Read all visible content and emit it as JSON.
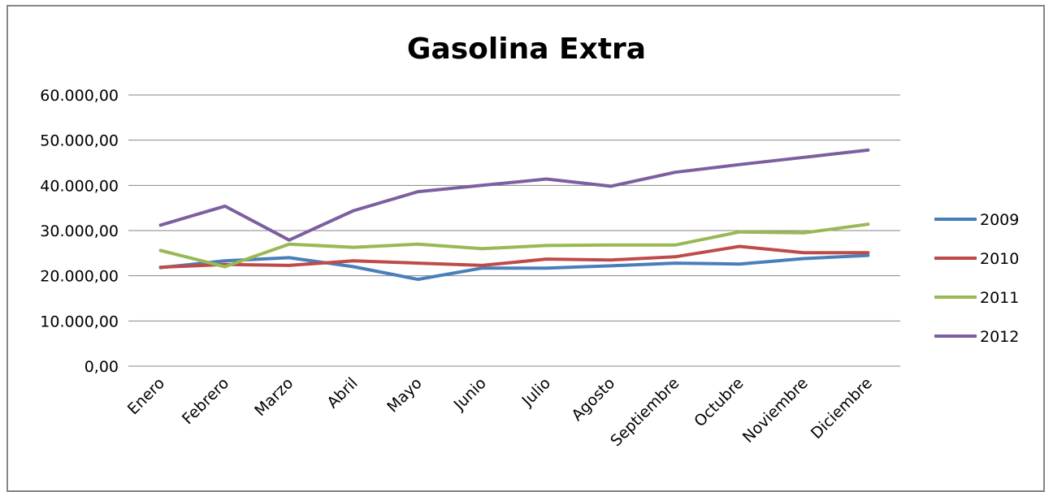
{
  "chart_data": {
    "type": "line",
    "title": "Gasolina Extra",
    "xlabel": "",
    "ylabel": "",
    "categories": [
      "Enero",
      "Febrero",
      "Marzo",
      "Abril",
      "Mayo",
      "Junio",
      "Julio",
      "Agosto",
      "Septiembre",
      "Octubre",
      "Noviembre",
      "Diciembre"
    ],
    "ylim": [
      0,
      60000
    ],
    "yticks": [
      "0,00",
      "10.000,00",
      "20.000,00",
      "30.000,00",
      "40.000,00",
      "50.000,00",
      "60.000,00"
    ],
    "grid": true,
    "legend_position": "right",
    "series": [
      {
        "name": "2009",
        "color": "#4A7EBB",
        "values": [
          21800,
          23300,
          24000,
          22000,
          19200,
          21700,
          21700,
          22200,
          22800,
          22600,
          23800,
          24500
        ]
      },
      {
        "name": "2010",
        "color": "#BE4B48",
        "values": [
          21900,
          22500,
          22300,
          23300,
          22800,
          22300,
          23700,
          23500,
          24200,
          26500,
          25100,
          25100
        ]
      },
      {
        "name": "2011",
        "color": "#98B954",
        "values": [
          25600,
          22000,
          27000,
          26300,
          27000,
          26000,
          26700,
          26800,
          26800,
          29700,
          29500,
          31400
        ]
      },
      {
        "name": "2012",
        "color": "#7D5FA0",
        "values": [
          31200,
          35400,
          27900,
          34400,
          38600,
          40000,
          41400,
          39800,
          42900,
          44600,
          46200,
          47800
        ]
      }
    ]
  }
}
